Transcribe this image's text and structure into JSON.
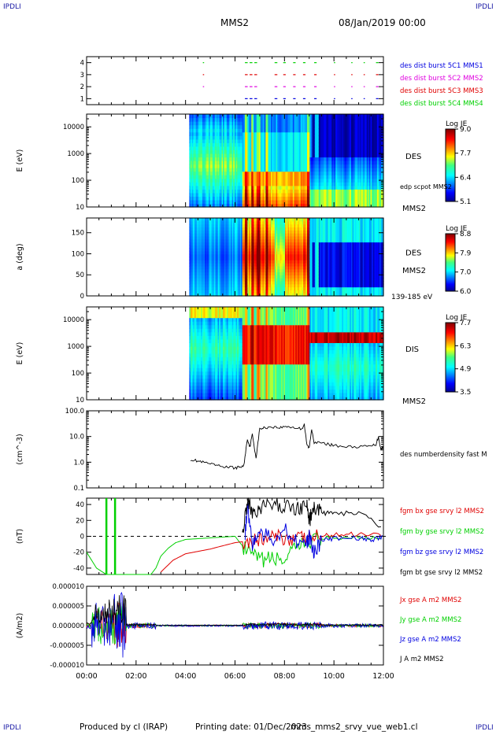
{
  "corner_label": "IPDLI",
  "title": "MMS2",
  "datetime": "08/Jan/2019 00:00",
  "footer": {
    "producer": "Produced by cl (IRAP)",
    "printing_date": "Printing date: 01/Dec/2023",
    "file": "mms_mms2_srvy_vue_web1.cl"
  },
  "colors": {
    "red": "#e00000",
    "green": "#00d000",
    "blue": "#0000e0",
    "magenta": "#e000e0",
    "black": "#000000"
  },
  "chart_data": [
    {
      "type": "scatter",
      "id": "availability",
      "ylim": [
        0.5,
        4.5
      ],
      "yticks": [
        "1",
        "2",
        "3",
        "4"
      ],
      "legend_position": "right",
      "series": [
        {
          "name": "des dist burst 5C1 MMS1",
          "color": "#0000e0",
          "row": 1
        },
        {
          "name": "des dist burst 5C2 MMS2",
          "color": "#e000e0",
          "row": 2
        },
        {
          "name": "des dist burst 5C3 MMS3",
          "color": "#e00000",
          "row": 3
        },
        {
          "name": "des dist burst 5C4 MMS4",
          "color": "#00d000",
          "row": 4
        }
      ],
      "intervals_hours": [
        [
          4.7,
          4.75
        ],
        [
          6.4,
          6.9
        ],
        [
          7.6,
          7.75
        ],
        [
          7.95,
          8.05
        ],
        [
          8.35,
          8.45
        ],
        [
          8.75,
          8.85
        ],
        [
          9.2,
          9.3
        ],
        [
          10.0,
          10.05
        ],
        [
          10.7,
          10.75
        ],
        [
          11.2,
          11.25
        ],
        [
          11.7,
          11.8
        ]
      ]
    },
    {
      "type": "heatmap",
      "id": "des-energy",
      "ylabel": "E (eV)",
      "yscale": "log",
      "ylim": [
        10,
        30000
      ],
      "yticks": [
        "10",
        "100",
        "1000",
        "10000"
      ],
      "instrument": "DES",
      "probe": "MMS2",
      "overlay_label": "edp scpot MMS2",
      "colorbar": {
        "title": "Log JE",
        "min": 5.1,
        "max": 9.0,
        "ticks": [
          "9.0",
          "7.7",
          "6.4",
          "5.1"
        ]
      }
    },
    {
      "type": "heatmap",
      "id": "des-pitch",
      "ylabel": "a (deg)",
      "ylim": [
        0,
        185
      ],
      "yticks": [
        "0",
        "50",
        "100",
        "150"
      ],
      "instrument": "DES",
      "probe": "MMS2",
      "energy_band": "139-185 eV",
      "colorbar": {
        "title": "Log JE",
        "min": 6.0,
        "max": 8.8,
        "ticks": [
          "8.8",
          "7.9",
          "7.0",
          "6.0"
        ]
      }
    },
    {
      "type": "heatmap",
      "id": "dis-energy",
      "ylabel": "E (eV)",
      "yscale": "log",
      "ylim": [
        10,
        30000
      ],
      "yticks": [
        "10",
        "100",
        "1000",
        "10000"
      ],
      "instrument": "DIS",
      "probe": "MMS2",
      "colorbar": {
        "title": "Log JE",
        "min": 3.5,
        "max": 7.7,
        "ticks": [
          "7.7",
          "6.3",
          "4.9",
          "3.5"
        ]
      }
    },
    {
      "type": "line",
      "id": "density",
      "ylabel": "(cm^-3)",
      "yscale": "log",
      "ylim": [
        0.1,
        100
      ],
      "yticks": [
        "0.1",
        "1.0",
        "10.0",
        "100.0"
      ],
      "series": [
        {
          "name": "des numberdensity fast M",
          "color": "#000000",
          "x": [
            4.2,
            4.5,
            4.8,
            5.1,
            5.4,
            5.7,
            6.0,
            6.2,
            6.35,
            6.5,
            6.6,
            6.7,
            6.85,
            7.0,
            7.2,
            7.5,
            7.8,
            8.1,
            8.4,
            8.7,
            8.8,
            8.9,
            9.0,
            9.1,
            9.2,
            9.5,
            9.8,
            10.0,
            10.5,
            11.0,
            11.5,
            11.7,
            11.8,
            11.9,
            12.0
          ],
          "y": [
            1.3,
            1.1,
            0.95,
            0.8,
            0.7,
            0.65,
            0.6,
            0.65,
            0.7,
            8,
            4,
            12,
            1.5,
            20,
            22,
            24,
            22,
            25,
            22,
            20,
            30,
            5,
            3.5,
            20,
            6,
            5.5,
            5,
            4.5,
            4,
            4,
            4.2,
            5,
            10,
            3,
            4.5
          ]
        }
      ]
    },
    {
      "type": "line",
      "id": "magnetic-field",
      "ylabel": "(nT)",
      "ylim": [
        -48,
        48
      ],
      "yticks": [
        "-40",
        "-20",
        "0",
        "20",
        "40"
      ],
      "series": [
        {
          "name": "fgm bx gse srvy l2 MMS2",
          "color": "#e00000",
          "x": [
            3.0,
            3.5,
            4.0,
            4.5,
            5.0,
            5.5,
            6.0,
            6.5,
            7.0,
            7.5,
            8.0,
            8.5,
            9.0,
            9.5,
            10.0,
            11.0,
            12.0
          ],
          "y": [
            -45,
            -30,
            -22,
            -19,
            -16,
            -12,
            -8,
            -6,
            -4,
            -2,
            -1,
            -3,
            -2,
            0,
            2,
            3,
            3
          ]
        },
        {
          "name": "fgm by gse srvy l2 MMS2",
          "color": "#00d000",
          "x": [
            0.0,
            0.4,
            0.8,
            1.2,
            1.6,
            2.0,
            2.4,
            2.6,
            2.8,
            3.0,
            3.3,
            3.6,
            4.0,
            5.0,
            6.0,
            6.5,
            7.0,
            7.5,
            8.0,
            8.5,
            9.0,
            9.5,
            10.0,
            11.0,
            12.0
          ],
          "y": [
            -20,
            -40,
            -48,
            -48,
            -48,
            -48,
            -48,
            -48,
            -40,
            -25,
            -15,
            -8,
            -4,
            -2,
            0,
            -20,
            -30,
            -28,
            -30,
            -15,
            -5,
            -3,
            -2,
            -1,
            -2
          ]
        },
        {
          "name": "fgm bz gse srvy l2 MMS2",
          "color": "#0000e0",
          "x": [
            6.4,
            6.5,
            6.7,
            7.0,
            7.5,
            8.0,
            8.5,
            8.9,
            9.0,
            9.2,
            9.5,
            10.0,
            11.0,
            11.5,
            12.0
          ],
          "y": [
            0,
            40,
            -10,
            5,
            -5,
            10,
            -5,
            -10,
            0,
            -20,
            -5,
            -3,
            -2,
            -5,
            0
          ]
        },
        {
          "name": "fgm bt gse srvy l2 MMS2",
          "color": "#000000",
          "x": [
            6.3,
            6.5,
            6.7,
            7.0,
            7.5,
            8.0,
            8.5,
            8.9,
            9.0,
            9.2,
            9.5,
            10.0,
            11.0,
            12.0
          ],
          "y": [
            5,
            45,
            30,
            35,
            40,
            38,
            35,
            40,
            20,
            35,
            30,
            28,
            30,
            10
          ]
        }
      ]
    },
    {
      "type": "line",
      "id": "current-density",
      "ylabel": "(A/m2)",
      "ylim": [
        -0.0001,
        0.0001
      ],
      "yticks": [
        "-0.000010",
        "-0.000005",
        "0.000000",
        "0.000005",
        "0.000010"
      ],
      "series": [
        {
          "name": "Jx gse A m2 MMS2",
          "color": "#e00000"
        },
        {
          "name": "Jy gse A m2 MMS2",
          "color": "#00d000"
        },
        {
          "name": "Jz gse A m2 MMS2",
          "color": "#0000e0"
        },
        {
          "name": "J A m2 MMS2",
          "color": "#000000"
        }
      ]
    }
  ],
  "x_axis": {
    "xlim_hours": [
      0,
      12
    ],
    "ticks": [
      "00:00",
      "02:00",
      "04:00",
      "06:00",
      "08:00",
      "10:00",
      "12:00"
    ]
  }
}
